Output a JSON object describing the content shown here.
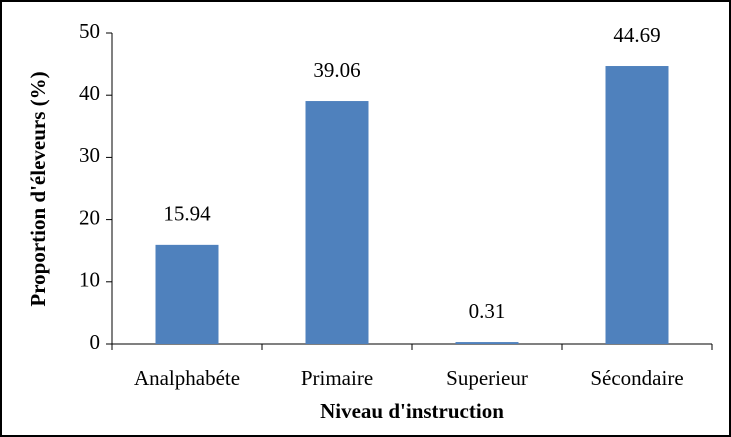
{
  "chart_data": {
    "type": "bar",
    "x_label": "Niveau d'instruction",
    "y_label": "Proportion d'éleveurs (%)",
    "categories": [
      "Analphabéte",
      "Primaire",
      "Superieur",
      "Sécondaire"
    ],
    "values": [
      15.94,
      39.06,
      0.31,
      44.69
    ],
    "color": "#4f81bd",
    "ylim": [
      0,
      50
    ],
    "yticks": [
      0,
      10,
      20,
      30,
      40,
      50
    ],
    "grid": false,
    "data_labels": true
  }
}
